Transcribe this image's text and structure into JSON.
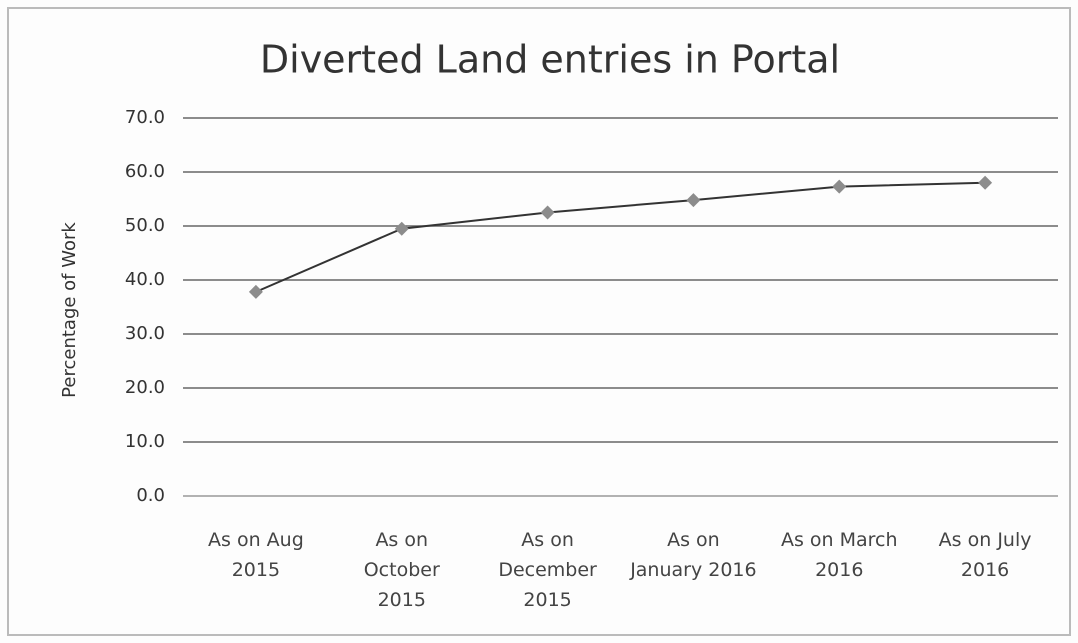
{
  "chart_data": {
    "type": "line",
    "title": "Diverted Land entries in Portal",
    "y_label": "Percentage of Work",
    "categories": [
      "As on Aug 2015",
      "As on October 2015",
      "As on December 2015",
      "As on January 2016",
      "As on March 2016",
      "As on July 2016"
    ],
    "series": [
      {
        "name": "Percentage of Work",
        "color": "#333333",
        "marker_color": "#8c8c8c",
        "values": [
          37.8,
          49.5,
          52.5,
          54.8,
          57.3,
          58.0
        ]
      }
    ],
    "ylim": [
      0,
      70
    ],
    "yticks": [
      {
        "value": 0,
        "label": "0.0"
      },
      {
        "value": 10,
        "label": "10.0"
      },
      {
        "value": 20,
        "label": "20.0"
      },
      {
        "value": 30,
        "label": "30.0"
      },
      {
        "value": 40,
        "label": "40.0"
      },
      {
        "value": 50,
        "label": "50.0"
      },
      {
        "value": 60,
        "label": "60.0"
      },
      {
        "value": 70,
        "label": "70.0"
      }
    ],
    "grid": true
  }
}
